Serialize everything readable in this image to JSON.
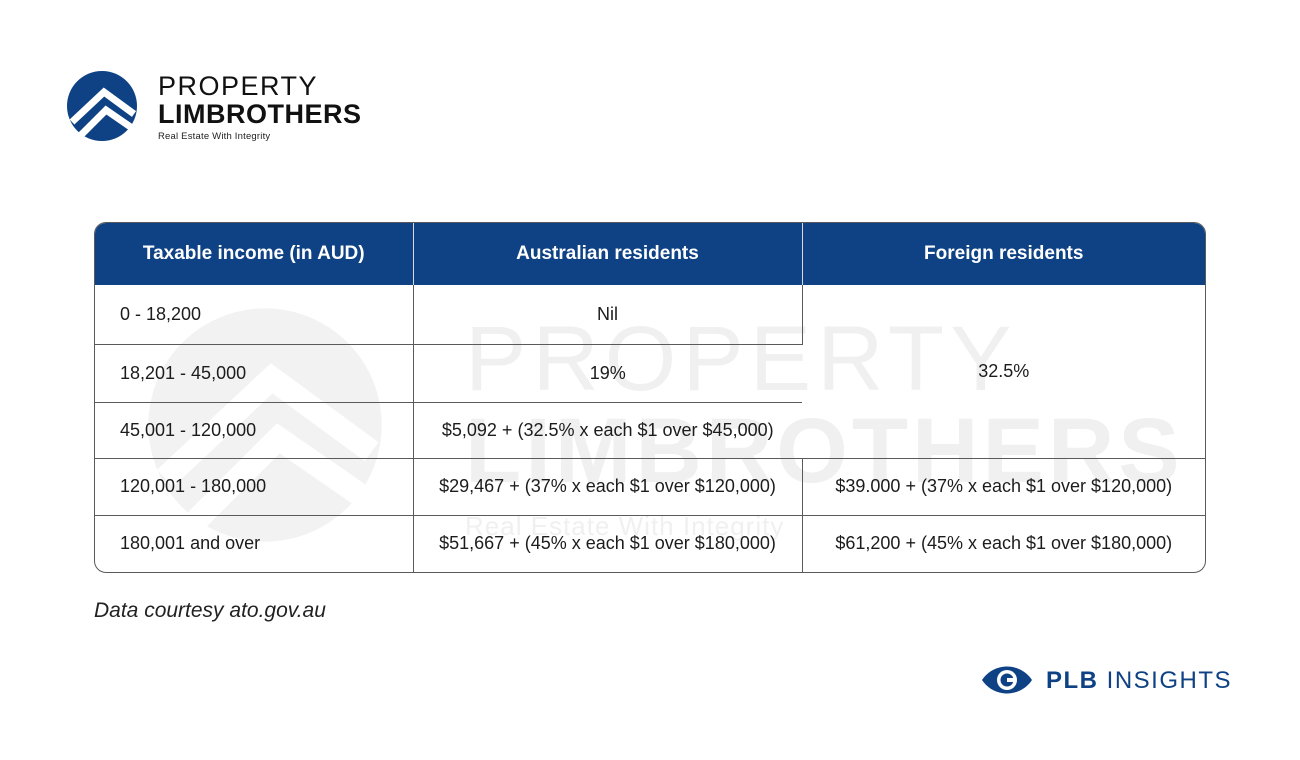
{
  "brand": {
    "line1": "PROPERTY",
    "line2": "LIMBROTHERS",
    "tagline": "Real Estate With Integrity",
    "accent": "#0e4284"
  },
  "watermark": {
    "line1": "PROPERTY",
    "line2": "LIMBROTHERS",
    "line3": "Real Estate With Integrity"
  },
  "table": {
    "headers": [
      "Taxable income (in AUD)",
      "Australian residents",
      "Foreign residents"
    ],
    "rows": [
      {
        "income": "0 - 18,200",
        "aus": "Nil"
      },
      {
        "income": "18,201 - 45,000",
        "aus": "19%"
      },
      {
        "income": "45,001 - 120,000",
        "aus": "$5,092 + (32.5% x each $1 over $45,000)"
      },
      {
        "income": "120,001 - 180,000",
        "aus": "$29,467 + (37% x each $1 over $120,000)",
        "foreign": "$39.000 + (37% x each $1 over $120,000)"
      },
      {
        "income": "180,001 and over",
        "aus": "$51,667 + (45% x each $1 over $180,000)",
        "foreign": "$61,200 + (45% x each $1 over $180,000)"
      }
    ],
    "foreign_merged": "32.5%"
  },
  "note": "Data courtesy ato.gov.au",
  "footer_brand": {
    "bold": "PLB",
    "rest": " INSIGHTS"
  }
}
